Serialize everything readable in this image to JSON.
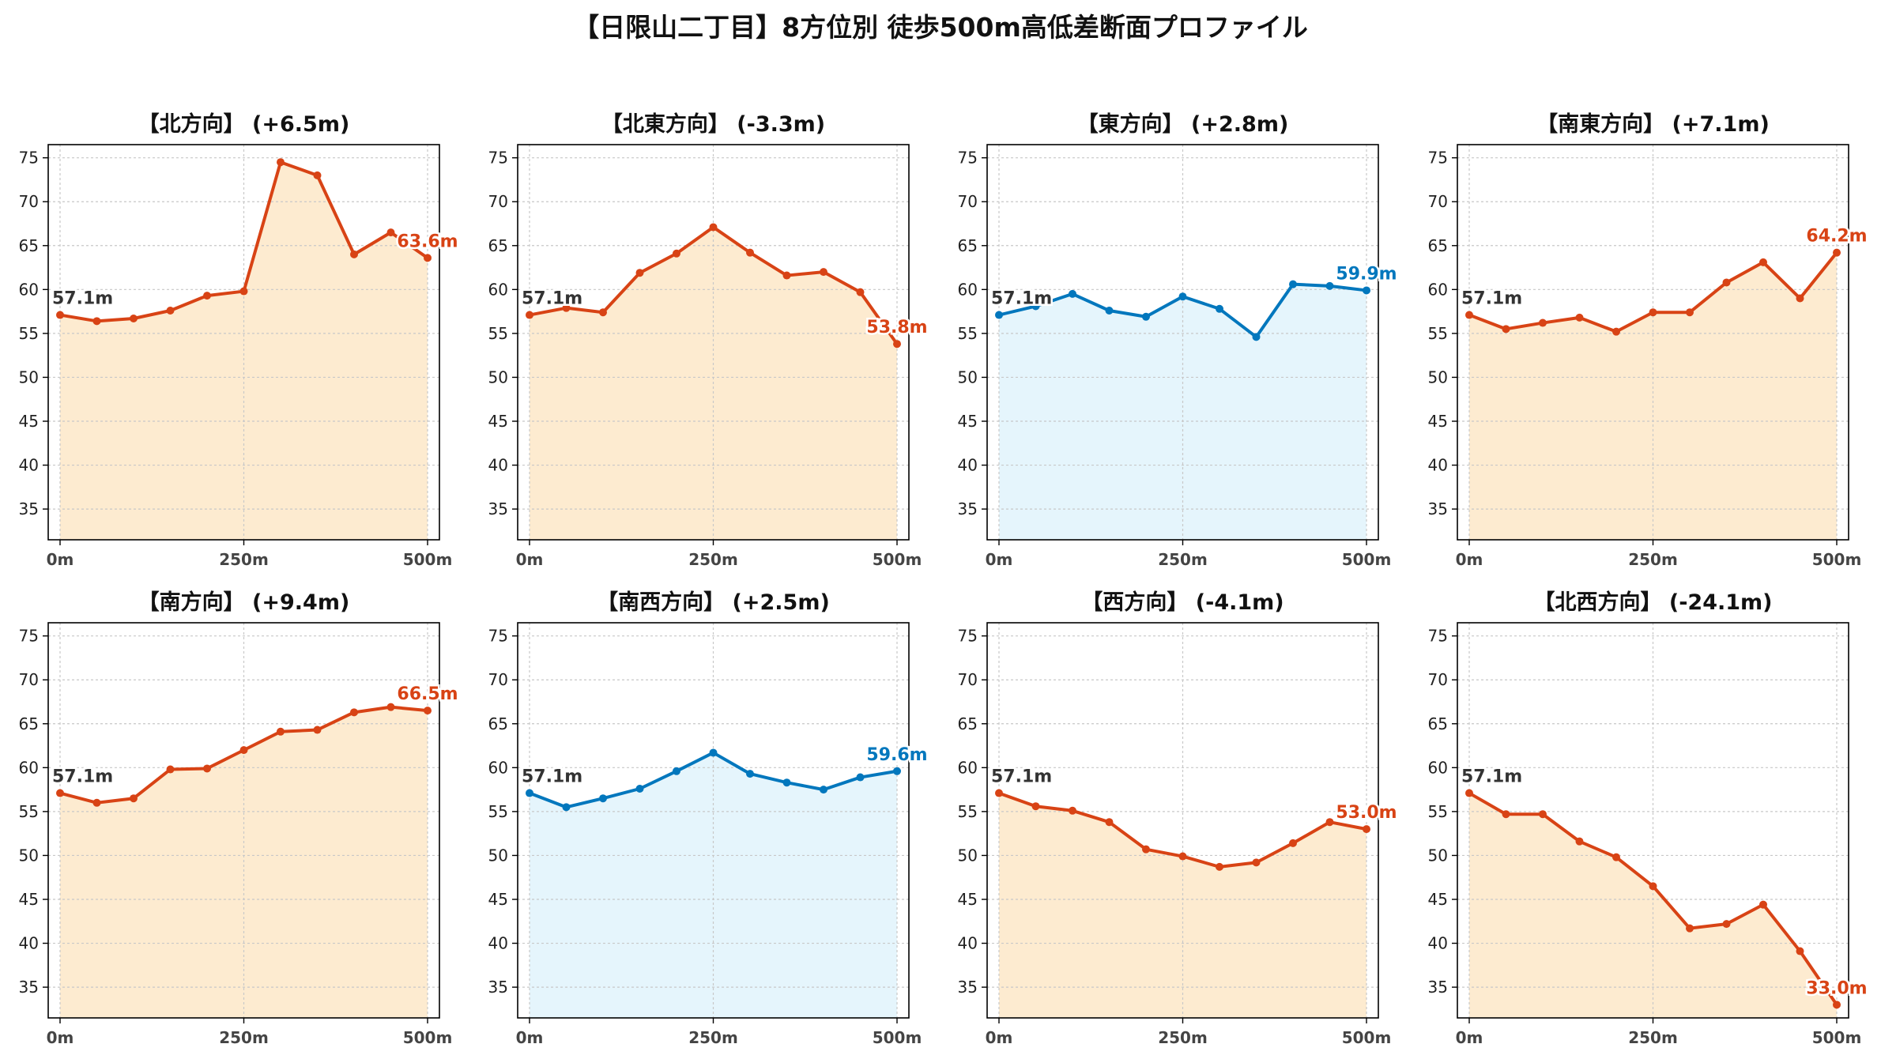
{
  "figure": {
    "suptitle": "【日限山二丁目】8方位別 徒歩500m高低差断面プロファイル"
  },
  "colors": {
    "up": "#d84315",
    "flat": "#0277bd",
    "up_fill": "#fdebd0",
    "flat_fill": "#e5f5fc",
    "grid": "#c8c8c8",
    "start_label": "#333333"
  },
  "chart_data": [
    {
      "type": "area",
      "title": "【北方向】 (+6.5m)",
      "color": "up",
      "x": [
        0,
        50,
        100,
        150,
        200,
        250,
        300,
        350,
        400,
        450,
        500
      ],
      "y": [
        57.1,
        56.4,
        56.7,
        57.6,
        59.3,
        59.8,
        74.5,
        73.0,
        64.0,
        66.5,
        63.6
      ],
      "ylim": [
        31.5,
        76.5
      ],
      "yticks": [
        35,
        40,
        45,
        50,
        55,
        60,
        65,
        70,
        75
      ],
      "xticks": [
        0,
        250,
        500
      ],
      "xtick_labels": [
        "0m",
        "250m",
        "500m"
      ],
      "start_label": "57.1m",
      "end_label": "63.6m",
      "grid": true
    },
    {
      "type": "area",
      "title": "【北東方向】 (-3.3m)",
      "color": "up",
      "x": [
        0,
        50,
        100,
        150,
        200,
        250,
        300,
        350,
        400,
        450,
        500
      ],
      "y": [
        57.1,
        57.9,
        57.4,
        61.9,
        64.1,
        67.1,
        64.2,
        61.6,
        62.0,
        59.7,
        53.8
      ],
      "ylim": [
        31.5,
        76.5
      ],
      "yticks": [
        35,
        40,
        45,
        50,
        55,
        60,
        65,
        70,
        75
      ],
      "xticks": [
        0,
        250,
        500
      ],
      "xtick_labels": [
        "0m",
        "250m",
        "500m"
      ],
      "start_label": "57.1m",
      "end_label": "53.8m",
      "grid": true
    },
    {
      "type": "area",
      "title": "【東方向】 (+2.8m)",
      "color": "flat",
      "x": [
        0,
        50,
        100,
        150,
        200,
        250,
        300,
        350,
        400,
        450,
        500
      ],
      "y": [
        57.1,
        58.1,
        59.5,
        57.6,
        56.9,
        59.2,
        57.8,
        54.6,
        60.6,
        60.4,
        59.9
      ],
      "ylim": [
        31.5,
        76.5
      ],
      "yticks": [
        35,
        40,
        45,
        50,
        55,
        60,
        65,
        70,
        75
      ],
      "xticks": [
        0,
        250,
        500
      ],
      "xtick_labels": [
        "0m",
        "250m",
        "500m"
      ],
      "start_label": "57.1m",
      "end_label": "59.9m",
      "grid": true
    },
    {
      "type": "area",
      "title": "【南東方向】 (+7.1m)",
      "color": "up",
      "x": [
        0,
        50,
        100,
        150,
        200,
        250,
        300,
        350,
        400,
        450,
        500
      ],
      "y": [
        57.1,
        55.5,
        56.2,
        56.8,
        55.2,
        57.4,
        57.4,
        60.8,
        63.1,
        59.0,
        64.2
      ],
      "ylim": [
        31.5,
        76.5
      ],
      "yticks": [
        35,
        40,
        45,
        50,
        55,
        60,
        65,
        70,
        75
      ],
      "xticks": [
        0,
        250,
        500
      ],
      "xtick_labels": [
        "0m",
        "250m",
        "500m"
      ],
      "start_label": "57.1m",
      "end_label": "64.2m",
      "grid": true
    },
    {
      "type": "area",
      "title": "【南方向】 (+9.4m)",
      "color": "up",
      "x": [
        0,
        50,
        100,
        150,
        200,
        250,
        300,
        350,
        400,
        450,
        500
      ],
      "y": [
        57.1,
        56.0,
        56.5,
        59.8,
        59.9,
        62.0,
        64.1,
        64.3,
        66.3,
        66.9,
        66.5
      ],
      "ylim": [
        31.5,
        76.5
      ],
      "yticks": [
        35,
        40,
        45,
        50,
        55,
        60,
        65,
        70,
        75
      ],
      "xticks": [
        0,
        250,
        500
      ],
      "xtick_labels": [
        "0m",
        "250m",
        "500m"
      ],
      "start_label": "57.1m",
      "end_label": "66.5m",
      "grid": true
    },
    {
      "type": "area",
      "title": "【南西方向】 (+2.5m)",
      "color": "flat",
      "x": [
        0,
        50,
        100,
        150,
        200,
        250,
        300,
        350,
        400,
        450,
        500
      ],
      "y": [
        57.1,
        55.5,
        56.5,
        57.6,
        59.6,
        61.7,
        59.3,
        58.3,
        57.5,
        58.9,
        59.6
      ],
      "ylim": [
        31.5,
        76.5
      ],
      "yticks": [
        35,
        40,
        45,
        50,
        55,
        60,
        65,
        70,
        75
      ],
      "xticks": [
        0,
        250,
        500
      ],
      "xtick_labels": [
        "0m",
        "250m",
        "500m"
      ],
      "start_label": "57.1m",
      "end_label": "59.6m",
      "grid": true
    },
    {
      "type": "area",
      "title": "【西方向】 (-4.1m)",
      "color": "up",
      "x": [
        0,
        50,
        100,
        150,
        200,
        250,
        300,
        350,
        400,
        450,
        500
      ],
      "y": [
        57.1,
        55.6,
        55.1,
        53.8,
        50.7,
        49.9,
        48.7,
        49.2,
        51.4,
        53.8,
        53.0
      ],
      "ylim": [
        31.5,
        76.5
      ],
      "yticks": [
        35,
        40,
        45,
        50,
        55,
        60,
        65,
        70,
        75
      ],
      "xticks": [
        0,
        250,
        500
      ],
      "xtick_labels": [
        "0m",
        "250m",
        "500m"
      ],
      "start_label": "57.1m",
      "end_label": "53.0m",
      "grid": true
    },
    {
      "type": "area",
      "title": "【北西方向】 (-24.1m)",
      "color": "up",
      "x": [
        0,
        50,
        100,
        150,
        200,
        250,
        300,
        350,
        400,
        450,
        500
      ],
      "y": [
        57.1,
        54.7,
        54.7,
        51.6,
        49.8,
        46.5,
        41.7,
        42.2,
        44.4,
        39.1,
        33.0
      ],
      "ylim": [
        31.5,
        76.5
      ],
      "yticks": [
        35,
        40,
        45,
        50,
        55,
        60,
        65,
        70,
        75
      ],
      "xticks": [
        0,
        250,
        500
      ],
      "xtick_labels": [
        "0m",
        "250m",
        "500m"
      ],
      "start_label": "57.1m",
      "end_label": "33.0m",
      "grid": true
    }
  ]
}
